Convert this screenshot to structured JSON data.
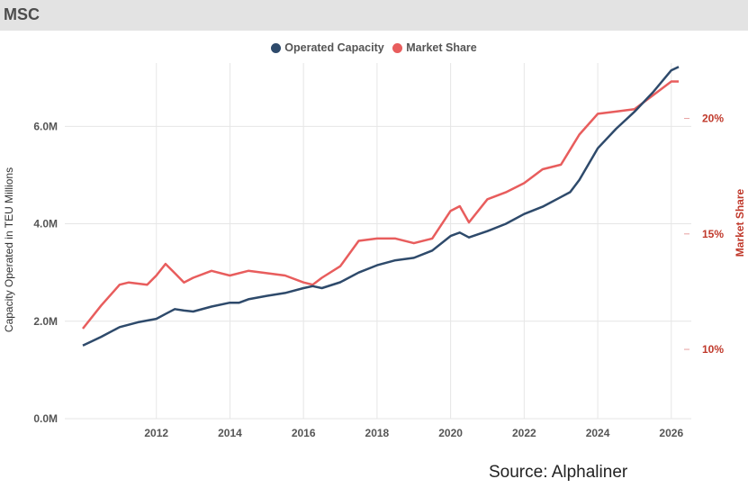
{
  "header": {
    "title": "MSC"
  },
  "source": "Source: Alphaliner",
  "colors": {
    "capacity": "#2e4a6b",
    "share": "#e85d5d",
    "share_axis": "#c0392b",
    "grid": "#e6e6e6"
  },
  "chart_data": {
    "type": "line",
    "title": "MSC",
    "legend": [
      "Operated Capacity",
      "Market Share"
    ],
    "legend_position": "top-center",
    "ylabel": "Capacity Operated in TEU Millions",
    "ylabel_right": "Market Share",
    "x_ticks": [
      "2012",
      "2014",
      "2016",
      "2018",
      "2020",
      "2022",
      "2024",
      "2026"
    ],
    "y_ticks_left": [
      "0.0M",
      "2.0M",
      "4.0M",
      "6.0M"
    ],
    "y_ticks_right": [
      "10%",
      "15%",
      "20%"
    ],
    "xlim": [
      2010.0,
      2026.25
    ],
    "ylim_left": [
      0,
      7.3
    ],
    "ylim_right": [
      7.0,
      22.4
    ],
    "grid": true,
    "series": [
      {
        "name": "Operated Capacity",
        "axis": "left",
        "unit": "M TEU",
        "x": [
          2010.0,
          2010.5,
          2011.0,
          2011.5,
          2012.0,
          2012.25,
          2012.5,
          2012.75,
          2013.0,
          2013.5,
          2014.0,
          2014.25,
          2014.5,
          2015.0,
          2015.5,
          2016.0,
          2016.25,
          2016.5,
          2017.0,
          2017.5,
          2018.0,
          2018.5,
          2019.0,
          2019.5,
          2020.0,
          2020.25,
          2020.5,
          2021.0,
          2021.5,
          2022.0,
          2022.5,
          2023.0,
          2023.25,
          2023.5,
          2024.0,
          2024.5,
          2025.0,
          2025.5,
          2026.0,
          2026.2
        ],
        "values": [
          1.5,
          1.68,
          1.88,
          1.98,
          2.05,
          2.15,
          2.25,
          2.22,
          2.2,
          2.3,
          2.38,
          2.38,
          2.45,
          2.52,
          2.58,
          2.68,
          2.72,
          2.68,
          2.8,
          3.0,
          3.15,
          3.25,
          3.3,
          3.45,
          3.75,
          3.82,
          3.72,
          3.85,
          4.0,
          4.2,
          4.35,
          4.55,
          4.65,
          4.9,
          5.55,
          5.95,
          6.3,
          6.7,
          7.15,
          7.22
        ]
      },
      {
        "name": "Market Share",
        "axis": "right",
        "unit": "%",
        "x": [
          2010.0,
          2010.5,
          2011.0,
          2011.25,
          2011.75,
          2012.0,
          2012.25,
          2012.5,
          2012.75,
          2013.0,
          2013.5,
          2014.0,
          2014.5,
          2015.0,
          2015.5,
          2016.0,
          2016.25,
          2016.5,
          2017.0,
          2017.5,
          2018.0,
          2018.5,
          2019.0,
          2019.5,
          2020.0,
          2020.25,
          2020.5,
          2021.0,
          2021.5,
          2022.0,
          2022.5,
          2023.0,
          2023.5,
          2024.0,
          2024.5,
          2025.0,
          2025.5,
          2026.0,
          2026.2
        ],
        "values": [
          10.9,
          11.9,
          12.8,
          12.9,
          12.8,
          13.2,
          13.7,
          13.3,
          12.9,
          13.1,
          13.4,
          13.2,
          13.4,
          13.3,
          13.2,
          12.9,
          12.8,
          13.1,
          13.6,
          14.7,
          14.8,
          14.8,
          14.6,
          14.8,
          16.0,
          16.2,
          15.5,
          16.5,
          16.8,
          17.2,
          17.8,
          18.0,
          19.3,
          20.2,
          20.3,
          20.4,
          21.0,
          21.6,
          21.6
        ]
      }
    ]
  }
}
